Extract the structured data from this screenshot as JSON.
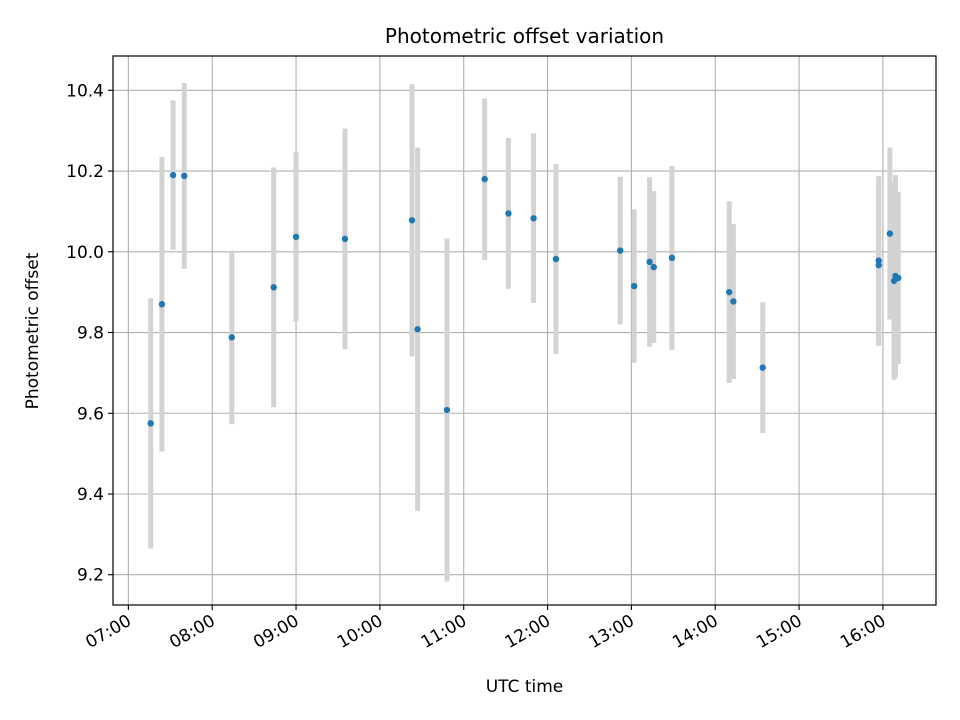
{
  "chart_data": {
    "type": "scatter",
    "title": "Photometric offset variation",
    "xlabel": "UTC time",
    "ylabel": "Photometric offset",
    "xlim": [
      "06:49",
      "16:38"
    ],
    "ylim": [
      9.125,
      10.485
    ],
    "x_ticks": [
      "07:00",
      "08:00",
      "09:00",
      "10:00",
      "11:00",
      "12:00",
      "13:00",
      "14:00",
      "15:00",
      "16:00"
    ],
    "y_ticks": [
      9.2,
      9.4,
      9.6,
      9.8,
      10.0,
      10.2,
      10.4
    ],
    "y_tick_labels": [
      "9.2",
      "9.4",
      "9.6",
      "9.8",
      "10.0",
      "10.2",
      "10.4"
    ],
    "grid": true,
    "colors": {
      "point": "#1f77b4",
      "errorbar": "#d3d3d3",
      "grid": "#b0b0b0"
    },
    "series": [
      {
        "points": [
          {
            "x": "07:16",
            "y": 9.575,
            "err": 0.31
          },
          {
            "x": "07:24",
            "y": 9.87,
            "err": 0.365
          },
          {
            "x": "07:32",
            "y": 10.19,
            "err": 0.185
          },
          {
            "x": "07:40",
            "y": 10.188,
            "err": 0.23
          },
          {
            "x": "08:14",
            "y": 9.788,
            "err": 0.215
          },
          {
            "x": "08:44",
            "y": 9.912,
            "err": 0.297
          },
          {
            "x": "09:00",
            "y": 10.037,
            "err": 0.21
          },
          {
            "x": "09:35",
            "y": 10.032,
            "err": 0.273
          },
          {
            "x": "10:23",
            "y": 10.078,
            "err": 0.337
          },
          {
            "x": "10:27",
            "y": 9.808,
            "err": 0.45
          },
          {
            "x": "10:48",
            "y": 9.608,
            "err": 0.425
          },
          {
            "x": "11:15",
            "y": 10.18,
            "err": 0.2
          },
          {
            "x": "11:32",
            "y": 10.095,
            "err": 0.187
          },
          {
            "x": "11:50",
            "y": 10.083,
            "err": 0.21
          },
          {
            "x": "12:06",
            "y": 9.982,
            "err": 0.235
          },
          {
            "x": "12:52",
            "y": 10.003,
            "err": 0.183
          },
          {
            "x": "13:02",
            "y": 9.915,
            "err": 0.19
          },
          {
            "x": "13:13",
            "y": 9.975,
            "err": 0.21
          },
          {
            "x": "13:16",
            "y": 9.962,
            "err": 0.188
          },
          {
            "x": "13:29",
            "y": 9.985,
            "err": 0.228
          },
          {
            "x": "14:10",
            "y": 9.9,
            "err": 0.225
          },
          {
            "x": "14:13",
            "y": 9.877,
            "err": 0.192
          },
          {
            "x": "14:34",
            "y": 9.713,
            "err": 0.162
          },
          {
            "x": "15:57",
            "y": 9.978,
            "err": 0.21
          },
          {
            "x": "15:57",
            "y": 9.967,
            "err": 0.2
          },
          {
            "x": "16:05",
            "y": 10.045,
            "err": 0.213
          },
          {
            "x": "16:08",
            "y": 9.928,
            "err": 0.245
          },
          {
            "x": "16:09",
            "y": 9.94,
            "err": 0.25
          },
          {
            "x": "16:11",
            "y": 9.935,
            "err": 0.213
          }
        ]
      }
    ]
  }
}
